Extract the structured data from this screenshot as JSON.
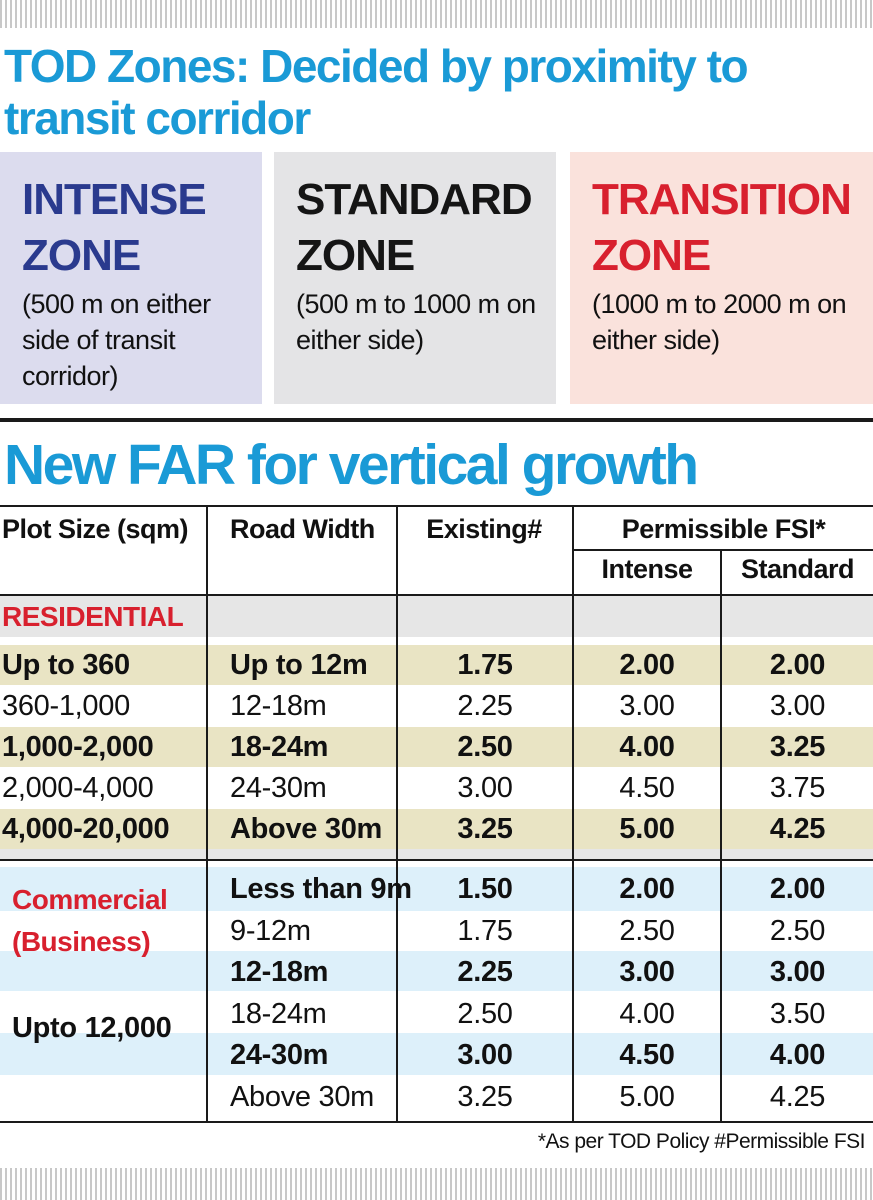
{
  "title_zones": "TOD Zones: Decided by proximity to transit corridor",
  "zones": [
    {
      "name_line1": "INTENSE",
      "name_line2": "ZONE",
      "desc": "(500 m on either side of transit corridor)",
      "color": "#2a3a8e",
      "bg": "#dcdcee"
    },
    {
      "name_line1": "STANDARD",
      "name_line2": "ZONE",
      "desc": "(500 m to 1000 m on either side)",
      "color": "#151515",
      "bg": "#e4e4e6"
    },
    {
      "name_line1": "TRANSITION",
      "name_line2": "ZONE",
      "desc": "(1000 m to 2000 m on either side)",
      "color": "#d8202e",
      "bg": "#fae2dc"
    }
  ],
  "title_far": "New FAR for vertical growth",
  "table": {
    "headers": {
      "plot_size": "Plot Size (sqm)",
      "road_width": "Road Width",
      "existing": "Existing#",
      "permissible": "Permissible FSI*",
      "intense": "Intense",
      "standard": "Standard"
    },
    "residential_label": "RESIDENTIAL",
    "residential_rows": [
      {
        "plot": "Up to 360",
        "road": "Up to 12m",
        "existing": "1.75",
        "intense": "2.00",
        "standard": "2.00"
      },
      {
        "plot": "360-1,000",
        "road": "12-18m",
        "existing": "2.25",
        "intense": "3.00",
        "standard": "3.00"
      },
      {
        "plot": "1,000-2,000",
        "road": "18-24m",
        "existing": "2.50",
        "intense": "4.00",
        "standard": "3.25"
      },
      {
        "plot": "2,000-4,000",
        "road": "24-30m",
        "existing": "3.00",
        "intense": "4.50",
        "standard": "3.75"
      },
      {
        "plot": "4,000-20,000",
        "road": "Above 30m",
        "existing": "3.25",
        "intense": "5.00",
        "standard": "4.25"
      }
    ],
    "commercial_label_line1": "Commercial",
    "commercial_label_line2": "(Business)",
    "commercial_plot": "Upto 12,000",
    "commercial_rows": [
      {
        "road": "Less than 9m",
        "existing": "1.50",
        "intense": "2.00",
        "standard": "2.00"
      },
      {
        "road": "9-12m",
        "existing": "1.75",
        "intense": "2.50",
        "standard": "2.50"
      },
      {
        "road": "12-18m",
        "existing": "2.25",
        "intense": "3.00",
        "standard": "3.00"
      },
      {
        "road": "18-24m",
        "existing": "2.50",
        "intense": "4.00",
        "standard": "3.50"
      },
      {
        "road": "24-30m",
        "existing": "3.00",
        "intense": "4.50",
        "standard": "4.00"
      },
      {
        "road": "Above 30m",
        "existing": "3.25",
        "intense": "5.00",
        "standard": "4.25"
      }
    ]
  },
  "footnote": "*As per TOD Policy  #Permissible FSI",
  "colors": {
    "title_blue": "#1a9ad6",
    "red": "#d8202e",
    "zone_blue": "#2a3a8e",
    "res_band": "#e9e4c4",
    "com_band": "#ddf0fa"
  }
}
